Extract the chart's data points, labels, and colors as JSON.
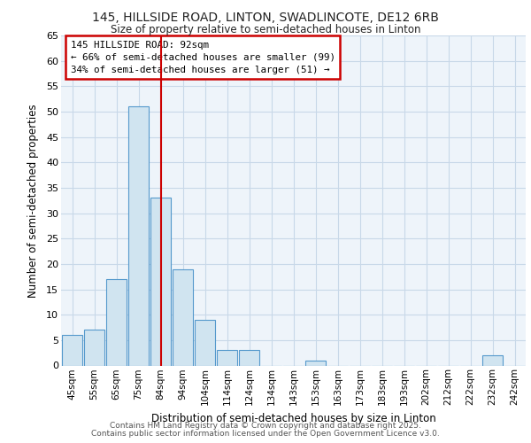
{
  "title_line1": "145, HILLSIDE ROAD, LINTON, SWADLINCOTE, DE12 6RB",
  "title_line2": "Size of property relative to semi-detached houses in Linton",
  "xlabel": "Distribution of semi-detached houses by size in Linton",
  "ylabel": "Number of semi-detached properties",
  "bin_labels": [
    "45sqm",
    "55sqm",
    "65sqm",
    "75sqm",
    "84sqm",
    "94sqm",
    "104sqm",
    "114sqm",
    "124sqm",
    "134sqm",
    "143sqm",
    "153sqm",
    "163sqm",
    "173sqm",
    "183sqm",
    "193sqm",
    "202sqm",
    "212sqm",
    "222sqm",
    "232sqm",
    "242sqm"
  ],
  "bar_heights": [
    6,
    7,
    17,
    51,
    33,
    19,
    9,
    3,
    3,
    0,
    0,
    1,
    0,
    0,
    0,
    0,
    0,
    0,
    0,
    2,
    0
  ],
  "bar_color": "#d0e4f0",
  "bar_edge_color": "#5599cc",
  "property_line_x": 4.0,
  "property_line_color": "#cc0000",
  "annotation_title": "145 HILLSIDE ROAD: 92sqm",
  "annotation_line1": "← 66% of semi-detached houses are smaller (99)",
  "annotation_line2": "34% of semi-detached houses are larger (51) →",
  "annotation_box_color": "#cc0000",
  "ylim": [
    0,
    65
  ],
  "yticks": [
    0,
    5,
    10,
    15,
    20,
    25,
    30,
    35,
    40,
    45,
    50,
    55,
    60,
    65
  ],
  "footer_line1": "Contains HM Land Registry data © Crown copyright and database right 2025.",
  "footer_line2": "Contains public sector information licensed under the Open Government Licence v3.0.",
  "bg_color": "#ffffff",
  "plot_bg_color": "#eef4fa",
  "grid_color": "#c8d8e8"
}
